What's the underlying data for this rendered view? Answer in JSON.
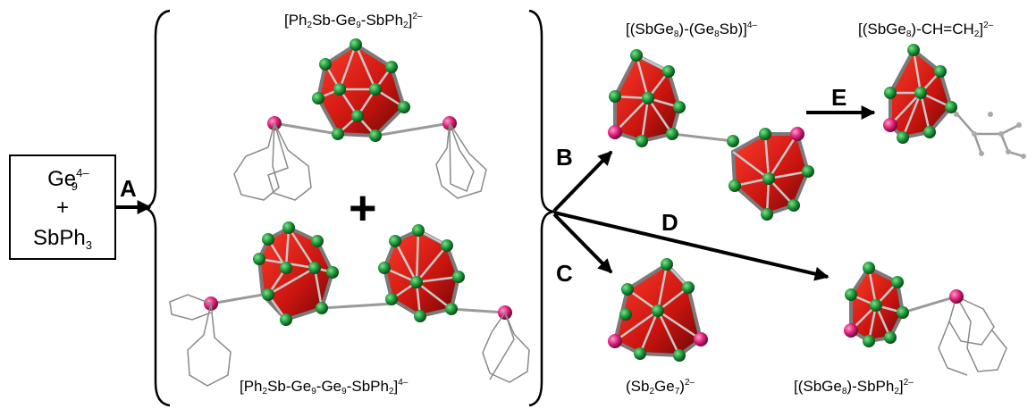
{
  "reactants": {
    "line1_main": "Ge",
    "line1_sub": "9",
    "line1_sup": "4–",
    "line2": "+",
    "line3_main": "SbPh",
    "line3_sub": "3"
  },
  "steps": {
    "a": "A",
    "b": "B",
    "c": "C",
    "d": "D",
    "e": "E"
  },
  "plus_sign": "+",
  "labels": {
    "top_center": {
      "p1": "[Ph",
      "s1": "2",
      "p2": "Sb-Ge",
      "s2": "9",
      "p3": "-SbPh",
      "s3": "2",
      "p4": "]",
      "sup": "2–"
    },
    "bottom_center": {
      "p1": "[Ph",
      "s1": "2",
      "p2": "Sb-Ge",
      "s2": "9",
      "p3": "-Ge",
      "s3": "9",
      "p4": "-SbPh",
      "s4": "2",
      "p5": "]",
      "sup": "4–"
    },
    "top_right1": {
      "p1": "[(SbGe",
      "s1": "8",
      "p2": ")-(Ge",
      "s2": "8",
      "p3": "Sb)]",
      "sup": "4–"
    },
    "top_right2": {
      "p1": "[(SbGe",
      "s1": "8",
      "p2": ")-CH=CH",
      "s2": "2",
      "p3": "]",
      "sup": "2–"
    },
    "bottom_mid": {
      "p1": "(Sb",
      "s1": "2",
      "p2": "Ge",
      "s2": "7",
      "p3": ")",
      "sup": "2–"
    },
    "bottom_right": {
      "p1": "[(SbGe",
      "s1": "8",
      "p2": ")-SbPh",
      "s2": "2",
      "p3": "]",
      "sup": "2–"
    }
  },
  "colors": {
    "cluster_fill": "#c8140f",
    "cluster_dark": "#7a0a08",
    "edge": "#8a8a8a",
    "ge_atom": "#1f9a3a",
    "sb_atom": "#e0207a",
    "phenyl": "#9a9a9a"
  }
}
